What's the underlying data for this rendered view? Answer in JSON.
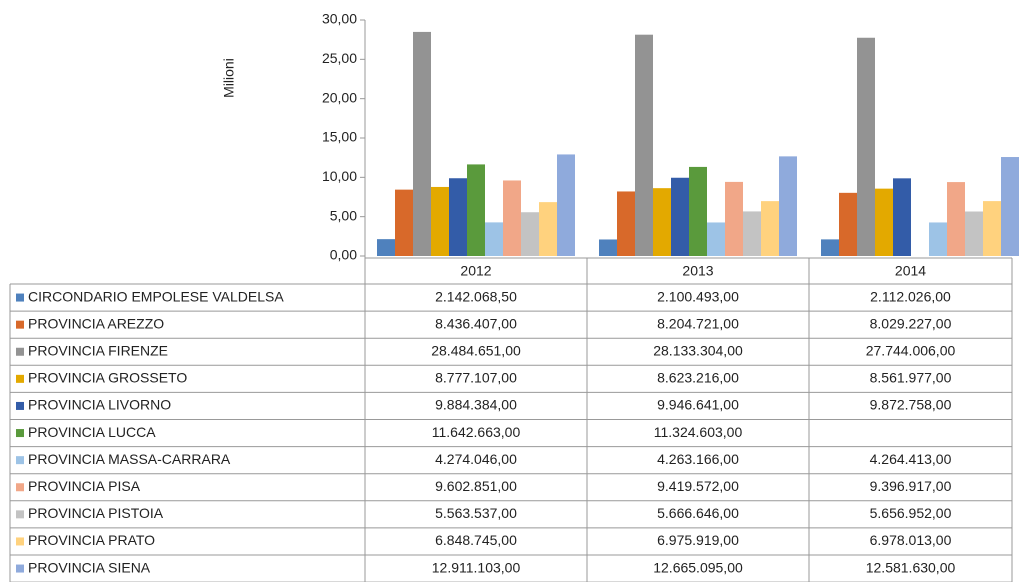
{
  "chart_data": {
    "type": "bar",
    "y_axis_label": "Milioni",
    "categories": [
      "2012",
      "2013",
      "2014"
    ],
    "ylim": [
      0,
      30
    ],
    "yticks": [
      {
        "value": 0,
        "label": "0,00"
      },
      {
        "value": 5,
        "label": "5,00"
      },
      {
        "value": 10,
        "label": "10,00"
      },
      {
        "value": 15,
        "label": "15,00"
      },
      {
        "value": 20,
        "label": "20,00"
      },
      {
        "value": 25,
        "label": "25,00"
      },
      {
        "value": 30,
        "label": "30,00"
      }
    ],
    "series": [
      {
        "name": "CIRCONDARIO EMPOLESE VALDELSA",
        "color": "#4f81bd",
        "values": [
          2.1420685,
          2.100493,
          2.112026
        ],
        "value_labels": [
          "2.142.068,50",
          "2.100.493,00",
          "2.112.026,00"
        ]
      },
      {
        "name": "PROVINCIA AREZZO",
        "color": "#d8692a",
        "values": [
          8.436407,
          8.204721,
          8.029227
        ],
        "value_labels": [
          "8.436.407,00",
          "8.204.721,00",
          "8.029.227,00"
        ]
      },
      {
        "name": "PROVINCIA FIRENZE",
        "color": "#939393",
        "values": [
          28.484651,
          28.133304,
          27.744006
        ],
        "value_labels": [
          "28.484.651,00",
          "28.133.304,00",
          "27.744.006,00"
        ]
      },
      {
        "name": "PROVINCIA GROSSETO",
        "color": "#e3a900",
        "values": [
          8.777107,
          8.623216,
          8.561977
        ],
        "value_labels": [
          "8.777.107,00",
          "8.623.216,00",
          "8.561.977,00"
        ]
      },
      {
        "name": "PROVINCIA LIVORNO",
        "color": "#335ca8",
        "values": [
          9.884384,
          9.946641,
          9.872758
        ],
        "value_labels": [
          "9.884.384,00",
          "9.946.641,00",
          "9.872.758,00"
        ]
      },
      {
        "name": "PROVINCIA LUCCA",
        "color": "#5a9a3c",
        "values": [
          11.642663,
          11.324603,
          null
        ],
        "value_labels": [
          "11.642.663,00",
          "11.324.603,00",
          null
        ]
      },
      {
        "name": "PROVINCIA MASSA-CARRARA",
        "color": "#9dc3e6",
        "values": [
          4.274046,
          4.263166,
          4.264413
        ],
        "value_labels": [
          "4.274.046,00",
          "4.263.166,00",
          "4.264.413,00"
        ]
      },
      {
        "name": "PROVINCIA PISA",
        "color": "#f1a788",
        "values": [
          9.602851,
          9.419572,
          9.396917
        ],
        "value_labels": [
          "9.602.851,00",
          "9.419.572,00",
          "9.396.917,00"
        ]
      },
      {
        "name": "PROVINCIA PISTOIA",
        "color": "#c3c3c3",
        "values": [
          5.563537,
          5.666646,
          5.656952
        ],
        "value_labels": [
          "5.563.537,00",
          "5.666.646,00",
          "5.656.952,00"
        ]
      },
      {
        "name": "PROVINCIA PRATO",
        "color": "#ffd27e",
        "values": [
          6.848745,
          6.975919,
          6.978013
        ],
        "value_labels": [
          "6.848.745,00",
          "6.975.919,00",
          "6.978.013,00"
        ]
      },
      {
        "name": "PROVINCIA SIENA",
        "color": "#8faadc",
        "values": [
          12.911103,
          12.665095,
          12.58163
        ],
        "value_labels": [
          "12.911.103,00",
          "12.665.095,00",
          "12.581.630,00"
        ]
      }
    ]
  }
}
